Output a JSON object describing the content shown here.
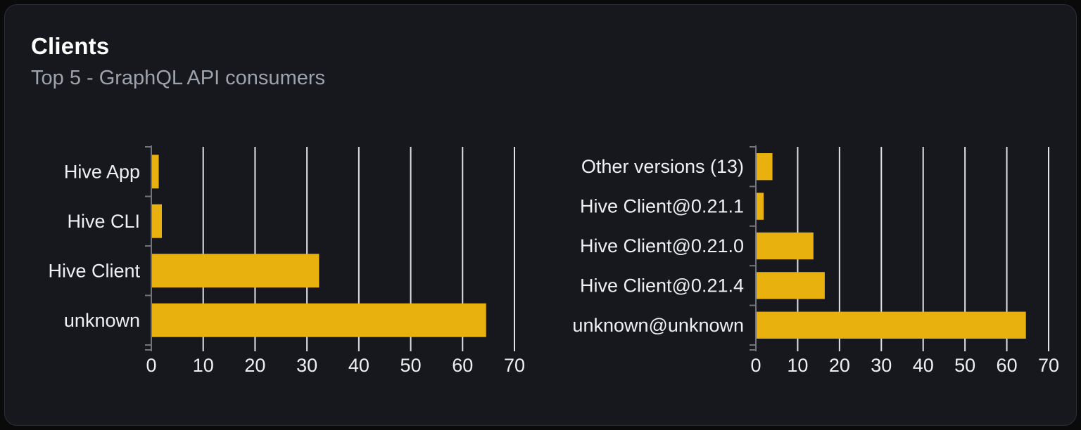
{
  "card": {
    "title": "Clients",
    "subtitle": "Top 5 - GraphQL API consumers"
  },
  "colors": {
    "bar": "#e9b10e",
    "grid": "#dfe2e8",
    "axis": "#71747c",
    "tick_label": "#eef0f3",
    "category_label": "#eef0f3",
    "title": "#ffffff",
    "subtitle": "#9da3ad",
    "card_bg": "#16181d",
    "card_border": "#2b2e36",
    "page_bg": "#0a0a0b"
  },
  "chart_data": [
    {
      "type": "bar",
      "orientation": "horizontal",
      "name": "clients",
      "title": "",
      "categories": [
        "Hive App",
        "Hive CLI",
        "Hive Client",
        "unknown"
      ],
      "values": [
        1.3,
        1.9,
        32.2,
        64.4
      ],
      "xlabel": "",
      "ylabel": "",
      "xlim": [
        0,
        70
      ],
      "xticks": [
        0,
        10,
        20,
        30,
        40,
        50,
        60,
        70
      ],
      "grid": true,
      "legend": false
    },
    {
      "type": "bar",
      "orientation": "horizontal",
      "name": "client-versions",
      "title": "",
      "categories": [
        "Other versions (13)",
        "Hive Client@0.21.1",
        "Hive Client@0.21.0",
        "Hive Client@0.21.4",
        "unknown@unknown"
      ],
      "values": [
        3.8,
        1.7,
        13.6,
        16.3,
        64.4
      ],
      "xlabel": "",
      "ylabel": "",
      "xlim": [
        0,
        70
      ],
      "xticks": [
        0,
        10,
        20,
        30,
        40,
        50,
        60,
        70
      ],
      "grid": true,
      "legend": false
    }
  ]
}
